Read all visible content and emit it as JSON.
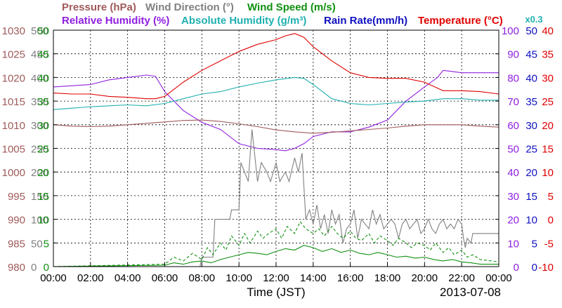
{
  "chart_data": {
    "type": "line",
    "date": "2013-07-08",
    "xlabel": "Time (JST)",
    "x_ticks": [
      "00:00",
      "02:00",
      "04:00",
      "06:00",
      "08:00",
      "10:00",
      "12:00",
      "14:00",
      "16:00",
      "18:00",
      "20:00",
      "22:00",
      "00:00"
    ],
    "xlim_hours": [
      0,
      24
    ],
    "grid": true,
    "legend_row1": [
      {
        "text": "Pressure (hPa)",
        "color": "#a05a5a"
      },
      {
        "text": "Wind Direction (°)",
        "color": "#808080"
      },
      {
        "text": "Wind Speed (m/s)",
        "color": "#109010"
      }
    ],
    "legend_row2": [
      {
        "text": "Relative Humidity (%)",
        "color": "#9020e0"
      },
      {
        "text": "Absolute Humidity (g/m³)",
        "color": "#20b0b0"
      },
      {
        "text": "Rain Rate(mm/h)",
        "color": "#1010c0"
      },
      {
        "text": "Temperature (°C)",
        "color": "#e00000"
      }
    ],
    "rain_scale_note": {
      "text": "x0.3",
      "color": "#20b0b0"
    },
    "axes": [
      {
        "name": "pressure",
        "color": "#a05a5a",
        "ylim": [
          980,
          1030
        ],
        "ticks": [
          "980",
          "985",
          "990",
          "995",
          "1000",
          "1005",
          "1010",
          "1015",
          "1020",
          "1025",
          "1030"
        ]
      },
      {
        "name": "wind-direction",
        "color": "#808080",
        "ylim": [
          0,
          500
        ],
        "ticks": [
          "0",
          "50",
          "100",
          "150",
          "200",
          "250",
          "300",
          "350",
          "400",
          "450",
          "500"
        ]
      },
      {
        "name": "wind-speed",
        "color": "#109010",
        "ylim": [
          0,
          50
        ],
        "ticks": [
          "0",
          "5",
          "10",
          "15",
          "20",
          "25",
          "30",
          "35",
          "40",
          "45",
          "50"
        ]
      },
      {
        "name": "humidity",
        "color": "#9020e0",
        "ylim": [
          0,
          100
        ],
        "ticks": [
          "0",
          "10",
          "20",
          "30",
          "40",
          "50",
          "60",
          "70",
          "80",
          "90",
          "100"
        ]
      },
      {
        "name": "rain-rate",
        "color": "#1010c0",
        "ylim": [
          0,
          50
        ],
        "ticks": [
          "0",
          "5",
          "10",
          "15",
          "20",
          "25",
          "30",
          "35",
          "40",
          "45",
          "50"
        ]
      },
      {
        "name": "temperature",
        "color": "#e00000",
        "ylim": [
          -10,
          40
        ],
        "ticks": [
          "-10",
          "-5",
          "0",
          "5",
          "10",
          "15",
          "20",
          "25",
          "30",
          "35",
          "40"
        ]
      }
    ],
    "series": [
      {
        "name": "Temperature",
        "color": "#e00000",
        "axis": "temperature",
        "x": [
          0,
          1,
          2,
          3,
          4,
          5,
          5.5,
          6,
          7,
          8,
          9,
          10,
          11,
          12,
          12.5,
          13,
          13.5,
          14,
          15,
          16,
          17,
          18,
          19,
          20,
          21,
          22,
          23,
          24
        ],
        "y": [
          26.7,
          26.5,
          26.5,
          26.0,
          25.8,
          25.5,
          25.5,
          26.0,
          29.0,
          31.5,
          33.5,
          35.5,
          37.0,
          38.0,
          38.8,
          39.3,
          38.5,
          36.5,
          33.5,
          31.0,
          30.0,
          29.8,
          29.8,
          29.0,
          27.2,
          27.2,
          27.0,
          26.5
        ]
      },
      {
        "name": "Absolute Humidity",
        "color": "#20b0b0",
        "axis": "temperature",
        "x": [
          0,
          1,
          2,
          3,
          4,
          5,
          6,
          7,
          8,
          9,
          10,
          11,
          12,
          13,
          13.5,
          14,
          15,
          16,
          17,
          18,
          19,
          20,
          21,
          22,
          23,
          24
        ],
        "y": [
          23.2,
          23.5,
          23.8,
          24.0,
          24.2,
          24.0,
          24.5,
          25.5,
          26.5,
          27.0,
          28.0,
          28.8,
          29.5,
          30.0,
          29.8,
          28.5,
          25.5,
          24.5,
          24.2,
          24.5,
          24.8,
          25.0,
          25.5,
          25.5,
          25.2,
          25.2
        ]
      },
      {
        "name": "Relative Humidity",
        "color": "#9020e0",
        "axis": "humidity",
        "x": [
          0,
          1,
          2,
          3,
          4,
          5,
          5.5,
          6,
          7,
          8,
          9,
          10,
          11,
          12,
          12.5,
          13,
          13.5,
          14,
          15,
          16,
          17,
          18,
          19,
          20,
          20.7,
          21,
          22,
          23,
          24
        ],
        "y": [
          76,
          76.5,
          77,
          79,
          80,
          81,
          80.5,
          74,
          66,
          61,
          58,
          52,
          50,
          49.5,
          49,
          50,
          52,
          55,
          57,
          57,
          59,
          62,
          70,
          76,
          80,
          83,
          82,
          82,
          82
        ]
      },
      {
        "name": "Pressure",
        "color": "#a05a5a",
        "axis": "pressure",
        "x": [
          0,
          1,
          2,
          3,
          4,
          5,
          6,
          7,
          8,
          9,
          10,
          11,
          12,
          13,
          14,
          15,
          16,
          17,
          18,
          19,
          20,
          21,
          22,
          23,
          24
        ],
        "y": [
          1010.0,
          1009.7,
          1009.6,
          1009.7,
          1010.0,
          1010.3,
          1010.6,
          1010.9,
          1011.0,
          1010.7,
          1010.2,
          1009.6,
          1008.9,
          1008.5,
          1008.2,
          1008.4,
          1008.7,
          1009.0,
          1009.3,
          1009.7,
          1010.0,
          1010.0,
          1010.0,
          1009.7,
          1009.5
        ]
      },
      {
        "name": "Wind Direction",
        "color": "#808080",
        "axis": "wind-direction",
        "x": [
          0,
          7.9,
          8.0,
          8.6,
          8.7,
          9.5,
          9.6,
          10.0,
          10.1,
          10.3,
          10.5,
          10.7,
          11.0,
          11.2,
          11.5,
          11.7,
          12.0,
          12.2,
          12.5,
          12.7,
          13.0,
          13.2,
          13.4,
          13.5,
          13.6,
          13.8,
          14.0,
          14.2,
          14.4,
          14.6,
          14.8,
          15.0,
          15.2,
          15.4,
          15.6,
          15.8,
          16.0,
          16.2,
          16.4,
          16.6,
          16.8,
          17.0,
          17.2,
          17.4,
          17.6,
          17.8,
          18.0,
          18.2,
          18.4,
          18.6,
          18.8,
          19.0,
          19.2,
          19.4,
          19.6,
          19.8,
          20.0,
          20.2,
          20.4,
          20.6,
          20.8,
          21.0,
          21.2,
          21.4,
          21.6,
          21.8,
          22.0,
          22.1,
          22.2,
          22.3,
          22.5,
          22.6,
          24
        ],
        "y": [
          0,
          0,
          20,
          20,
          100,
          100,
          120,
          120,
          220,
          200,
          180,
          290,
          180,
          220,
          200,
          180,
          220,
          180,
          200,
          180,
          230,
          200,
          240,
          170,
          100,
          120,
          90,
          130,
          80,
          110,
          70,
          120,
          90,
          110,
          50,
          80,
          90,
          120,
          60,
          100,
          90,
          80,
          120,
          90,
          110,
          80,
          90,
          100,
          90,
          60,
          90,
          100,
          80,
          90,
          100,
          70,
          80,
          100,
          80,
          70,
          90,
          100,
          80,
          90,
          80,
          100,
          90,
          60,
          40,
          60,
          50,
          70,
          70
        ]
      },
      {
        "name": "Wind Speed",
        "color": "#109010",
        "axis": "wind-speed",
        "x": [
          0,
          6,
          6.5,
          7,
          7.5,
          8,
          8.5,
          9,
          9.5,
          10,
          10.5,
          11,
          11.5,
          12,
          12.5,
          13,
          13.5,
          14,
          14.5,
          15,
          15.5,
          16,
          16.5,
          17,
          17.5,
          18,
          18.5,
          19,
          19.5,
          20,
          20.5,
          21,
          21.5,
          22,
          22.5,
          23,
          24
        ],
        "y": [
          0,
          0.3,
          0.8,
          0.5,
          1.0,
          1.2,
          0.8,
          1.5,
          2.0,
          2.5,
          3.0,
          2.8,
          2.5,
          3.2,
          3.8,
          3.5,
          4.5,
          4.0,
          3.2,
          3.8,
          3.0,
          3.5,
          2.8,
          2.5,
          3.0,
          2.5,
          2.0,
          2.2,
          1.8,
          2.0,
          1.5,
          1.2,
          1.5,
          1.0,
          0.8,
          0.5,
          0.5
        ]
      },
      {
        "name": "Wind Speed Peak",
        "color": "#109010",
        "axis": "wind-speed",
        "dashed": true,
        "x": [
          0,
          6,
          6.5,
          7,
          7.5,
          8,
          8.3,
          8.6,
          9,
          9.3,
          9.6,
          10,
          10.3,
          10.6,
          11,
          11.3,
          11.6,
          12,
          12.3,
          12.6,
          13,
          13.3,
          13.6,
          14,
          14.3,
          14.6,
          15,
          15.3,
          15.6,
          16,
          16.3,
          16.6,
          17,
          17.3,
          17.6,
          18,
          18.3,
          18.6,
          19,
          19.3,
          19.6,
          20,
          20.3,
          20.6,
          21,
          21.3,
          21.6,
          22,
          22.3,
          22.6,
          23,
          24
        ],
        "y": [
          0,
          0.5,
          2.0,
          1.2,
          2.8,
          1.5,
          4.0,
          2.5,
          5.0,
          3.5,
          6.5,
          4.5,
          7.0,
          5.0,
          7.5,
          6.0,
          7.0,
          8.0,
          6.0,
          8.5,
          7.0,
          9.5,
          8.0,
          7.0,
          8.0,
          6.5,
          8.5,
          7.0,
          6.0,
          7.5,
          6.0,
          5.5,
          7.0,
          5.0,
          6.5,
          5.5,
          4.5,
          6.0,
          5.0,
          4.0,
          5.0,
          4.5,
          3.5,
          5.0,
          3.0,
          4.0,
          2.5,
          3.5,
          2.0,
          2.5,
          1.5,
          1.0
        ]
      },
      {
        "name": "Rain Rate",
        "color": "#1010c0",
        "axis": "rain-rate",
        "x": [
          0,
          24
        ],
        "y": [
          0,
          0
        ]
      }
    ]
  }
}
